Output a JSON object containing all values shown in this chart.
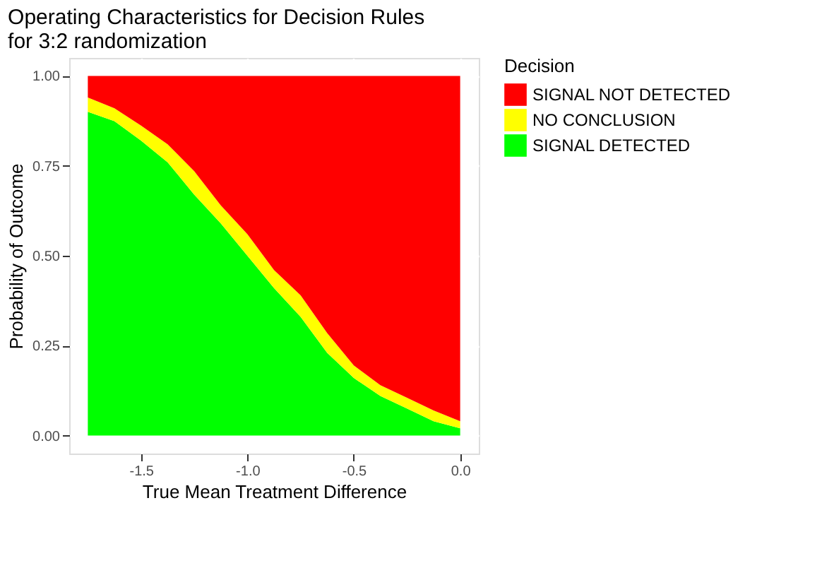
{
  "chart_data": {
    "type": "area",
    "stacked": true,
    "title": "Operating Characteristics for Decision Rules\n for 3:2 randomization",
    "xlabel": "True Mean Treatment Difference",
    "ylabel": "Probability of Outcome",
    "legend_title": "Decision",
    "legend": "right",
    "grid": true,
    "x": [
      -1.75,
      -1.625,
      -1.5,
      -1.375,
      -1.25,
      -1.125,
      -1.0,
      -0.875,
      -0.75,
      -0.625,
      -0.5,
      -0.375,
      -0.25,
      -0.125,
      0.0
    ],
    "series": [
      {
        "name": "SIGNAL DETECTED",
        "color": "#00ff00",
        "values": [
          0.9,
          0.874,
          0.82,
          0.76,
          0.67,
          0.59,
          0.5,
          0.41,
          0.33,
          0.23,
          0.16,
          0.11,
          0.075,
          0.04,
          0.02
        ]
      },
      {
        "name": "NO CONCLUSION",
        "color": "#ffff00",
        "values": [
          0.04,
          0.036,
          0.042,
          0.05,
          0.065,
          0.05,
          0.06,
          0.05,
          0.06,
          0.055,
          0.035,
          0.03,
          0.03,
          0.03,
          0.02
        ]
      },
      {
        "name": "SIGNAL NOT DETECTED",
        "color": "#ff0000",
        "values": [
          0.06,
          0.09,
          0.138,
          0.19,
          0.265,
          0.36,
          0.44,
          0.54,
          0.61,
          0.715,
          0.805,
          0.86,
          0.895,
          0.93,
          0.96
        ]
      }
    ],
    "xlim": [
      -1.8375,
      0.0875
    ],
    "xticks": [
      {
        "value": -1.5,
        "label": "-1.5"
      },
      {
        "value": -1.0,
        "label": "-1.0"
      },
      {
        "value": -0.5,
        "label": "-0.5"
      },
      {
        "value": 0.0,
        "label": "0.0"
      }
    ],
    "ylim": [
      -0.05,
      1.05
    ],
    "yticks": [
      {
        "value": 0,
        "label": "0.00"
      },
      {
        "value": 0.25,
        "label": "0.25"
      },
      {
        "value": 0.5,
        "label": "0.50"
      },
      {
        "value": 0.75,
        "label": "0.75"
      },
      {
        "value": 1.0,
        "label": "1.00"
      }
    ]
  }
}
